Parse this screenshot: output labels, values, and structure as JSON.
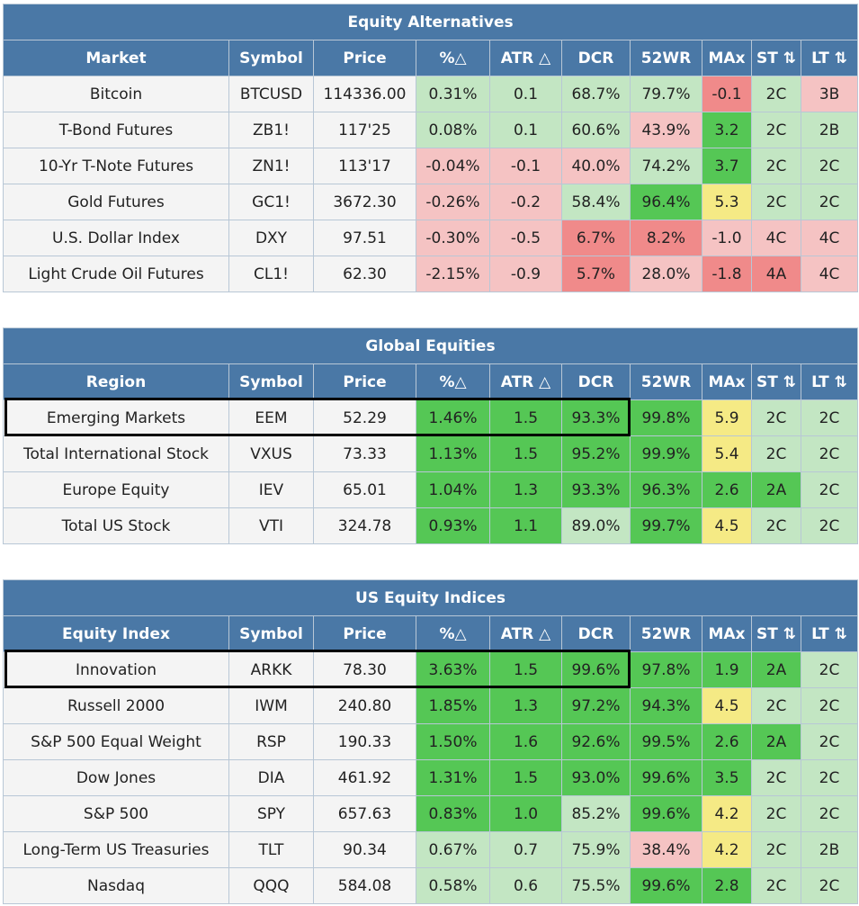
{
  "columns_tail": [
    "Symbol",
    "Price",
    "%△",
    "ATR △",
    "DCR",
    "52WR",
    "MAx",
    "ST ⇅",
    "LT ⇅"
  ],
  "sections": [
    {
      "title": "Equity Alternatives",
      "first_col": "Market",
      "rows": [
        {
          "name": "Bitcoin",
          "symbol": "BTCUSD",
          "price": "114336.00",
          "pct": "0.31%",
          "atr": "0.1",
          "dcr": "68.7%",
          "wr": "79.7%",
          "max": "-0.1",
          "st": "2C",
          "lt": "3B",
          "colors": [
            "g0",
            "g0",
            "g0",
            "g0",
            "r1",
            "g0",
            "r0"
          ]
        },
        {
          "name": "T-Bond Futures",
          "symbol": "ZB1!",
          "price": "117'25",
          "pct": "0.08%",
          "atr": "0.1",
          "dcr": "60.6%",
          "wr": "43.9%",
          "max": "3.2",
          "st": "2C",
          "lt": "2B",
          "colors": [
            "g0",
            "g0",
            "g0",
            "r0",
            "g1",
            "g0",
            "g0"
          ]
        },
        {
          "name": "10-Yr T-Note Futures",
          "symbol": "ZN1!",
          "price": "113'17",
          "pct": "-0.04%",
          "atr": "-0.1",
          "dcr": "40.0%",
          "wr": "74.2%",
          "max": "3.7",
          "st": "2C",
          "lt": "2C",
          "colors": [
            "r0",
            "r0",
            "r0",
            "g0",
            "g1",
            "g0",
            "g0"
          ]
        },
        {
          "name": "Gold Futures",
          "symbol": "GC1!",
          "price": "3672.30",
          "pct": "-0.26%",
          "atr": "-0.2",
          "dcr": "58.4%",
          "wr": "96.4%",
          "max": "5.3",
          "st": "2C",
          "lt": "2C",
          "colors": [
            "r0",
            "r0",
            "g0",
            "g1",
            "y0",
            "g0",
            "g0"
          ]
        },
        {
          "name": "U.S. Dollar Index",
          "symbol": "DXY",
          "price": "97.51",
          "pct": "-0.30%",
          "atr": "-0.5",
          "dcr": "6.7%",
          "wr": "8.2%",
          "max": "-1.0",
          "st": "4C",
          "lt": "4C",
          "colors": [
            "r0",
            "r0",
            "r1",
            "r1",
            "r0",
            "r0",
            "r0"
          ]
        },
        {
          "name": "Light Crude Oil Futures",
          "symbol": "CL1!",
          "price": "62.30",
          "pct": "-2.15%",
          "atr": "-0.9",
          "dcr": "5.7%",
          "wr": "28.0%",
          "max": "-1.8",
          "st": "4A",
          "lt": "4C",
          "colors": [
            "r0",
            "r0",
            "r1",
            "r0",
            "r1",
            "r1",
            "r0"
          ]
        }
      ]
    },
    {
      "title": "Global Equities",
      "first_col": "Region",
      "rows": [
        {
          "name": "Emerging Markets",
          "symbol": "EEM",
          "price": "52.29",
          "pct": "1.46%",
          "atr": "1.5",
          "dcr": "93.3%",
          "wr": "99.8%",
          "max": "5.9",
          "st": "2C",
          "lt": "2C",
          "colors": [
            "g1",
            "g1",
            "g1",
            "g1",
            "y0",
            "g0",
            "g0"
          ]
        },
        {
          "name": "Total International Stock",
          "symbol": "VXUS",
          "price": "73.33",
          "pct": "1.13%",
          "atr": "1.5",
          "dcr": "95.2%",
          "wr": "99.9%",
          "max": "5.4",
          "st": "2C",
          "lt": "2C",
          "colors": [
            "g1",
            "g1",
            "g1",
            "g1",
            "y0",
            "g0",
            "g0"
          ]
        },
        {
          "name": "Europe Equity",
          "symbol": "IEV",
          "price": "65.01",
          "pct": "1.04%",
          "atr": "1.3",
          "dcr": "93.3%",
          "wr": "96.3%",
          "max": "2.6",
          "st": "2A",
          "lt": "2C",
          "colors": [
            "g1",
            "g1",
            "g1",
            "g1",
            "g1",
            "g1",
            "g0"
          ]
        },
        {
          "name": "Total US Stock",
          "symbol": "VTI",
          "price": "324.78",
          "pct": "0.93%",
          "atr": "1.1",
          "dcr": "89.0%",
          "wr": "99.7%",
          "max": "4.5",
          "st": "2C",
          "lt": "2C",
          "colors": [
            "g1",
            "g1",
            "g0",
            "g1",
            "y0",
            "g0",
            "g0"
          ]
        }
      ]
    },
    {
      "title": "US Equity Indices",
      "first_col": "Equity Index",
      "rows": [
        {
          "name": "Innovation",
          "symbol": "ARKK",
          "price": "78.30",
          "pct": "3.63%",
          "atr": "1.5",
          "dcr": "99.6%",
          "wr": "97.8%",
          "max": "1.9",
          "st": "2A",
          "lt": "2C",
          "colors": [
            "g1",
            "g1",
            "g1",
            "g1",
            "g1",
            "g1",
            "g0"
          ]
        },
        {
          "name": "Russell 2000",
          "symbol": "IWM",
          "price": "240.80",
          "pct": "1.85%",
          "atr": "1.3",
          "dcr": "97.2%",
          "wr": "94.3%",
          "max": "4.5",
          "st": "2C",
          "lt": "2C",
          "colors": [
            "g1",
            "g1",
            "g1",
            "g1",
            "y0",
            "g0",
            "g0"
          ]
        },
        {
          "name": "S&P 500 Equal Weight",
          "symbol": "RSP",
          "price": "190.33",
          "pct": "1.50%",
          "atr": "1.6",
          "dcr": "92.6%",
          "wr": "99.5%",
          "max": "2.6",
          "st": "2A",
          "lt": "2C",
          "colors": [
            "g1",
            "g1",
            "g1",
            "g1",
            "g1",
            "g1",
            "g0"
          ]
        },
        {
          "name": "Dow Jones",
          "symbol": "DIA",
          "price": "461.92",
          "pct": "1.31%",
          "atr": "1.5",
          "dcr": "93.0%",
          "wr": "99.6%",
          "max": "3.5",
          "st": "2C",
          "lt": "2C",
          "colors": [
            "g1",
            "g1",
            "g1",
            "g1",
            "g1",
            "g0",
            "g0"
          ]
        },
        {
          "name": "S&P 500",
          "symbol": "SPY",
          "price": "657.63",
          "pct": "0.83%",
          "atr": "1.0",
          "dcr": "85.2%",
          "wr": "99.6%",
          "max": "4.2",
          "st": "2C",
          "lt": "2C",
          "colors": [
            "g1",
            "g1",
            "g0",
            "g1",
            "y0",
            "g0",
            "g0"
          ]
        },
        {
          "name": "Long-Term US Treasuries",
          "symbol": "TLT",
          "price": "90.34",
          "pct": "0.67%",
          "atr": "0.7",
          "dcr": "75.9%",
          "wr": "38.4%",
          "max": "4.2",
          "st": "2C",
          "lt": "2B",
          "colors": [
            "g0",
            "g0",
            "g0",
            "r0",
            "y0",
            "g0",
            "g0"
          ]
        },
        {
          "name": "Nasdaq",
          "symbol": "QQQ",
          "price": "584.08",
          "pct": "0.58%",
          "atr": "0.6",
          "dcr": "75.5%",
          "wr": "99.6%",
          "max": "2.8",
          "st": "2C",
          "lt": "2C",
          "colors": [
            "g0",
            "g0",
            "g0",
            "g1",
            "g1",
            "g0",
            "g0"
          ]
        }
      ]
    }
  ]
}
